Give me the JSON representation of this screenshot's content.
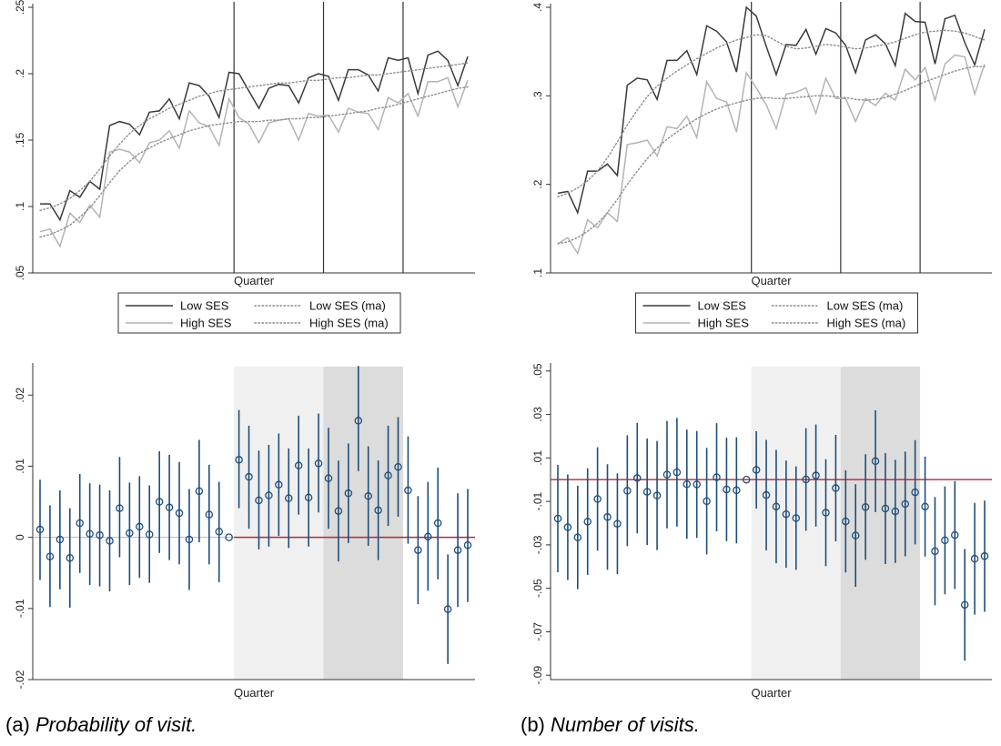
{
  "captions": [
    {
      "prefix": "(a) ",
      "text": "Probability of visit."
    },
    {
      "prefix": "(b) ",
      "text": "Number of visits."
    }
  ],
  "colors": {
    "low_ses": "#3a3a3a",
    "high_ses": "#b4b4b4",
    "ma": "#8c8c8c",
    "estimate": "#1f4e79",
    "zero_line_top": "#b0283c",
    "band_light": "#f0f0f0",
    "band_dark": "#dcdcdc"
  },
  "chart_data": [
    {
      "id": "a-top",
      "type": "line",
      "xlabel": "Quarter",
      "ylim": [
        0.05,
        0.25
      ],
      "yticks": [
        0.05,
        0.1,
        0.15,
        0.2,
        0.25
      ],
      "ytick_labels": [
        ".05",
        ".1",
        ".15",
        ".2",
        ".25"
      ],
      "vlines_at_index": [
        20,
        29,
        37
      ],
      "legend": {
        "placement": "bottom",
        "entries": [
          "Low SES",
          "Low SES (ma)",
          "High SES",
          "High SES (ma)"
        ]
      },
      "series": [
        {
          "name": "Low SES",
          "style": "solid",
          "color_key": "low_ses",
          "values": [
            0.102,
            0.102,
            0.09,
            0.112,
            0.107,
            0.119,
            0.113,
            0.161,
            0.164,
            0.162,
            0.154,
            0.171,
            0.172,
            0.181,
            0.166,
            0.193,
            0.191,
            0.183,
            0.167,
            0.201,
            0.2,
            0.187,
            0.174,
            0.189,
            0.192,
            0.191,
            0.178,
            0.197,
            0.2,
            0.198,
            0.18,
            0.203,
            0.203,
            0.199,
            0.187,
            0.212,
            0.21,
            0.212,
            0.185,
            0.214,
            0.217,
            0.21,
            0.191,
            0.213
          ]
        },
        {
          "name": "High SES",
          "style": "solid",
          "color_key": "high_ses",
          "values": [
            0.081,
            0.083,
            0.07,
            0.095,
            0.088,
            0.101,
            0.092,
            0.141,
            0.143,
            0.141,
            0.133,
            0.148,
            0.15,
            0.157,
            0.144,
            0.172,
            0.163,
            0.16,
            0.146,
            0.181,
            0.167,
            0.162,
            0.148,
            0.163,
            0.165,
            0.166,
            0.15,
            0.17,
            0.168,
            0.169,
            0.156,
            0.174,
            0.171,
            0.17,
            0.158,
            0.182,
            0.178,
            0.185,
            0.168,
            0.194,
            0.194,
            0.197,
            0.175,
            0.195
          ]
        },
        {
          "name": "Low SES (ma)",
          "style": "dotted",
          "color_key": "ma",
          "values": [
            0.097,
            0.099,
            0.102,
            0.106,
            0.112,
            0.119,
            0.128,
            0.138,
            0.147,
            0.155,
            0.161,
            0.166,
            0.17,
            0.174,
            0.177,
            0.18,
            0.183,
            0.185,
            0.187,
            0.188,
            0.189,
            0.19,
            0.191,
            0.192,
            0.193,
            0.193,
            0.194,
            0.195,
            0.195,
            0.196,
            0.197,
            0.197,
            0.198,
            0.199,
            0.199,
            0.2,
            0.201,
            0.202,
            0.203,
            0.204,
            0.205,
            0.206,
            0.207,
            0.208
          ]
        },
        {
          "name": "High SES (ma)",
          "style": "dotted",
          "color_key": "ma",
          "values": [
            0.077,
            0.079,
            0.082,
            0.086,
            0.092,
            0.099,
            0.108,
            0.118,
            0.127,
            0.134,
            0.14,
            0.144,
            0.148,
            0.151,
            0.154,
            0.157,
            0.159,
            0.161,
            0.162,
            0.163,
            0.164,
            0.164,
            0.164,
            0.165,
            0.165,
            0.166,
            0.166,
            0.167,
            0.167,
            0.168,
            0.169,
            0.17,
            0.171,
            0.172,
            0.174,
            0.175,
            0.177,
            0.179,
            0.181,
            0.183,
            0.185,
            0.187,
            0.189,
            0.19
          ]
        }
      ]
    },
    {
      "id": "b-top",
      "type": "line",
      "xlabel": "Quarter",
      "ylim": [
        0.1,
        0.4
      ],
      "yticks": [
        0.1,
        0.2,
        0.3,
        0.4
      ],
      "ytick_labels": [
        ".1",
        ".2",
        ".3",
        ".4"
      ],
      "vlines_at_index": [
        20,
        29,
        37
      ],
      "legend": {
        "placement": "bottom",
        "entries": [
          "Low SES",
          "Low SES (ma)",
          "High SES",
          "High SES (ma)"
        ]
      },
      "series": [
        {
          "name": "Low SES",
          "style": "solid",
          "color_key": "low_ses",
          "values": [
            0.19,
            0.192,
            0.168,
            0.215,
            0.215,
            0.223,
            0.21,
            0.312,
            0.32,
            0.318,
            0.296,
            0.34,
            0.34,
            0.351,
            0.324,
            0.379,
            0.373,
            0.361,
            0.327,
            0.4,
            0.39,
            0.356,
            0.324,
            0.358,
            0.357,
            0.375,
            0.347,
            0.376,
            0.371,
            0.357,
            0.326,
            0.363,
            0.369,
            0.359,
            0.334,
            0.393,
            0.384,
            0.383,
            0.336,
            0.387,
            0.391,
            0.36,
            0.335,
            0.375
          ]
        },
        {
          "name": "High SES",
          "style": "solid",
          "color_key": "high_ses",
          "values": [
            0.133,
            0.14,
            0.122,
            0.16,
            0.151,
            0.168,
            0.158,
            0.245,
            0.247,
            0.25,
            0.232,
            0.265,
            0.263,
            0.277,
            0.253,
            0.316,
            0.297,
            0.293,
            0.259,
            0.326,
            0.309,
            0.29,
            0.263,
            0.302,
            0.304,
            0.309,
            0.28,
            0.32,
            0.297,
            0.297,
            0.271,
            0.297,
            0.289,
            0.303,
            0.295,
            0.33,
            0.318,
            0.332,
            0.295,
            0.336,
            0.346,
            0.344,
            0.302,
            0.336
          ]
        },
        {
          "name": "Low SES (ma)",
          "style": "dotted",
          "color_key": "ma",
          "values": [
            0.186,
            0.19,
            0.196,
            0.204,
            0.215,
            0.23,
            0.248,
            0.267,
            0.284,
            0.299,
            0.311,
            0.32,
            0.328,
            0.335,
            0.342,
            0.348,
            0.354,
            0.359,
            0.363,
            0.366,
            0.369,
            0.368,
            0.362,
            0.356,
            0.353,
            0.354,
            0.356,
            0.358,
            0.357,
            0.355,
            0.353,
            0.354,
            0.356,
            0.358,
            0.361,
            0.365,
            0.369,
            0.372,
            0.373,
            0.374,
            0.373,
            0.371,
            0.367,
            0.363
          ]
        },
        {
          "name": "High SES (ma)",
          "style": "dotted",
          "color_key": "ma",
          "values": [
            0.133,
            0.135,
            0.14,
            0.147,
            0.156,
            0.168,
            0.183,
            0.2,
            0.215,
            0.229,
            0.241,
            0.251,
            0.259,
            0.267,
            0.274,
            0.28,
            0.285,
            0.289,
            0.292,
            0.295,
            0.297,
            0.298,
            0.297,
            0.297,
            0.298,
            0.299,
            0.3,
            0.3,
            0.299,
            0.298,
            0.296,
            0.295,
            0.296,
            0.298,
            0.302,
            0.306,
            0.311,
            0.316,
            0.32,
            0.324,
            0.328,
            0.331,
            0.333,
            0.333
          ]
        }
      ]
    },
    {
      "id": "a-bottom",
      "type": "scatter",
      "subtype": "coefficient-plot",
      "xlabel": "Quarter",
      "ylim": [
        -0.02,
        0.024
      ],
      "yticks": [
        -0.02,
        -0.01,
        0,
        0.01,
        0.02
      ],
      "ytick_labels": [
        "-.02",
        "-.01",
        "0",
        ".01",
        ".02"
      ],
      "zero_line": 0,
      "zero_line_start_index": 20,
      "shaded_ranges": [
        {
          "from": 20,
          "to": 29,
          "shade": "light"
        },
        {
          "from": 29,
          "to": 37,
          "shade": "dark"
        }
      ],
      "estimates": [
        0.0011,
        -0.0027,
        -0.0003,
        -0.0029,
        0.002,
        0.0005,
        0.0003,
        -0.0005,
        0.0041,
        0.0006,
        0.0015,
        0.0004,
        0.005,
        0.0042,
        0.0034,
        -0.0003,
        0.0065,
        0.0032,
        0.0008,
        0.0,
        0.0109,
        0.0085,
        0.0052,
        0.0059,
        0.0074,
        0.0055,
        0.0101,
        0.0056,
        0.0104,
        0.0083,
        0.0037,
        0.0062,
        0.0164,
        0.0058,
        0.0038,
        0.0087,
        0.0099,
        0.0066,
        -0.0018,
        0.0001,
        0.002,
        -0.0101,
        -0.0018,
        -0.0011
      ],
      "ci_low": [
        -0.006,
        -0.0098,
        -0.0073,
        -0.0099,
        -0.005,
        -0.0067,
        -0.0069,
        -0.0076,
        -0.0028,
        -0.0067,
        -0.0057,
        -0.0064,
        -0.0022,
        -0.0032,
        -0.0038,
        -0.0074,
        -0.0007,
        -0.0038,
        -0.0063,
        0.0,
        0.0041,
        0.0012,
        -0.0017,
        -0.0013,
        0.0002,
        -0.0015,
        0.0032,
        -0.0013,
        0.0035,
        0.0012,
        -0.0034,
        -0.0008,
        0.0093,
        -0.0012,
        -0.0032,
        0.0016,
        0.0029,
        -0.0009,
        -0.0094,
        -0.0075,
        -0.0059,
        -0.0178,
        -0.0098,
        -0.0091
      ],
      "ci_high": [
        0.0081,
        0.0045,
        0.0066,
        0.0041,
        0.0089,
        0.0076,
        0.0074,
        0.0066,
        0.0113,
        0.0077,
        0.0086,
        0.0073,
        0.0121,
        0.0116,
        0.0106,
        0.0068,
        0.0137,
        0.0102,
        0.0078,
        0.0,
        0.0179,
        0.0157,
        0.0122,
        0.013,
        0.0146,
        0.0125,
        0.0171,
        0.0125,
        0.0174,
        0.0154,
        0.0108,
        0.0132,
        0.0241,
        0.0128,
        0.0108,
        0.0157,
        0.0169,
        0.0142,
        0.0058,
        0.0078,
        0.0098,
        -0.0024,
        0.0062,
        0.0068
      ]
    },
    {
      "id": "b-bottom",
      "type": "scatter",
      "subtype": "coefficient-plot",
      "xlabel": "Quarter",
      "ylim": [
        -0.092,
        0.052
      ],
      "yticks": [
        -0.09,
        -0.07,
        -0.05,
        -0.03,
        -0.01,
        0.01,
        0.03,
        0.05
      ],
      "ytick_labels": [
        "-.09",
        "-.07",
        "-.05",
        "-.03",
        "-.01",
        ".01",
        ".03",
        ".05"
      ],
      "zero_line": 0,
      "zero_line_start_index": 0,
      "shaded_ranges": [
        {
          "from": 20,
          "to": 29,
          "shade": "light"
        },
        {
          "from": 29,
          "to": 37,
          "shade": "dark"
        }
      ],
      "estimates": [
        -0.0179,
        -0.0219,
        -0.0266,
        -0.0193,
        -0.0089,
        -0.0172,
        -0.0203,
        -0.0051,
        0.0007,
        -0.0056,
        -0.0073,
        0.0023,
        0.0034,
        -0.0021,
        -0.0022,
        -0.0099,
        0.0011,
        -0.0045,
        -0.0049,
        0.0,
        0.0045,
        -0.0071,
        -0.0124,
        -0.0159,
        -0.0177,
        0.0001,
        0.0019,
        -0.0152,
        -0.0039,
        -0.0192,
        -0.0257,
        -0.0126,
        0.0085,
        -0.0133,
        -0.0146,
        -0.0112,
        -0.0058,
        -0.0124,
        -0.0329,
        -0.0279,
        -0.0255,
        -0.0576,
        -0.0364,
        -0.0352
      ],
      "ci_low": [
        -0.0426,
        -0.0462,
        -0.0504,
        -0.0438,
        -0.0327,
        -0.0415,
        -0.0435,
        -0.0306,
        -0.0247,
        -0.0301,
        -0.0324,
        -0.0224,
        -0.0216,
        -0.0272,
        -0.0268,
        -0.0344,
        -0.0238,
        -0.0283,
        -0.0293,
        0.0,
        -0.0133,
        -0.0325,
        -0.0385,
        -0.0406,
        -0.0415,
        -0.0235,
        -0.0216,
        -0.0398,
        -0.0284,
        -0.0427,
        -0.0493,
        -0.0369,
        -0.0149,
        -0.0388,
        -0.0383,
        -0.0353,
        -0.0298,
        -0.0354,
        -0.0578,
        -0.0527,
        -0.0503,
        -0.0833,
        -0.0621,
        -0.0608
      ],
      "ci_high": [
        0.0068,
        0.0024,
        -0.0028,
        0.0052,
        0.0149,
        0.0071,
        0.0029,
        0.0204,
        0.0261,
        0.0189,
        0.0178,
        0.027,
        0.0284,
        0.023,
        0.0224,
        0.0146,
        0.026,
        0.0193,
        0.0195,
        0.0,
        0.0223,
        0.0183,
        0.0137,
        0.0088,
        0.0061,
        0.0237,
        0.0254,
        0.0094,
        0.0206,
        0.0043,
        -0.0021,
        0.0117,
        0.0319,
        0.0122,
        0.0091,
        0.0129,
        0.0182,
        0.0106,
        -0.008,
        -0.0031,
        -0.0007,
        -0.0319,
        -0.0107,
        -0.0096
      ]
    }
  ]
}
